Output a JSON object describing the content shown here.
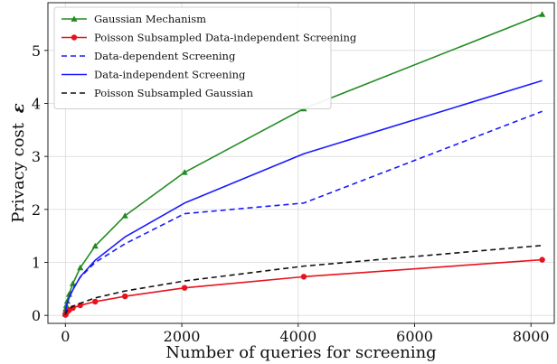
{
  "chart_data": {
    "type": "line",
    "xlabel": "Number of queries for screening",
    "ylabel_text": "Privacy cost",
    "ylabel_symbol": "ε",
    "xlim": [
      -300,
      8400
    ],
    "ylim": [
      -0.15,
      5.9
    ],
    "xticks": [
      0,
      2000,
      4000,
      6000,
      8000
    ],
    "yticks": [
      0,
      1,
      2,
      3,
      4,
      5
    ],
    "grid": true,
    "legend_position": "top-left",
    "series": [
      {
        "name": "Gaussian Mechanism",
        "color": "#228b22",
        "dash": "solid",
        "marker": "triangle",
        "x": [
          1,
          2,
          4,
          8,
          16,
          32,
          64,
          128,
          256,
          512,
          1024,
          2048,
          4096,
          8192
        ],
        "y": [
          0.03,
          0.05,
          0.08,
          0.13,
          0.19,
          0.27,
          0.4,
          0.6,
          0.9,
          1.31,
          1.88,
          2.7,
          3.9,
          5.68
        ]
      },
      {
        "name": "Poisson Subsampled Data-independent Screening",
        "color": "#e8121d",
        "dash": "solid",
        "marker": "circle",
        "x": [
          1,
          2,
          4,
          8,
          16,
          32,
          64,
          128,
          256,
          512,
          1024,
          2048,
          4096,
          8192
        ],
        "y": [
          0.01,
          0.02,
          0.03,
          0.04,
          0.05,
          0.07,
          0.1,
          0.14,
          0.19,
          0.26,
          0.36,
          0.52,
          0.73,
          1.05
        ]
      },
      {
        "name": "Data-dependent Screening",
        "color": "#1a1aff",
        "dash": "dashed",
        "marker": "none",
        "x": [
          1,
          2,
          4,
          8,
          16,
          32,
          64,
          128,
          256,
          512,
          1024,
          2048,
          4096,
          8192
        ],
        "y": [
          0.03,
          0.04,
          0.07,
          0.11,
          0.16,
          0.24,
          0.34,
          0.5,
          0.72,
          1.0,
          1.35,
          1.92,
          2.12,
          3.85
        ]
      },
      {
        "name": "Data-independent Screening",
        "color": "#1a1aff",
        "dash": "solid",
        "marker": "none",
        "x": [
          1,
          2,
          4,
          8,
          16,
          32,
          64,
          128,
          256,
          512,
          1024,
          2048,
          4096,
          8192
        ],
        "y": [
          0.03,
          0.04,
          0.07,
          0.11,
          0.16,
          0.23,
          0.33,
          0.48,
          0.73,
          1.04,
          1.48,
          2.12,
          3.05,
          4.43
        ]
      },
      {
        "name": "Poisson Subsampled Gaussian",
        "color": "#111111",
        "dash": "dashed",
        "marker": "none",
        "x": [
          1,
          2,
          4,
          8,
          16,
          32,
          64,
          128,
          256,
          512,
          1024,
          2048,
          4096,
          8192
        ],
        "y": [
          0.01,
          0.02,
          0.03,
          0.05,
          0.06,
          0.09,
          0.12,
          0.17,
          0.23,
          0.33,
          0.46,
          0.65,
          0.93,
          1.32
        ]
      }
    ]
  }
}
